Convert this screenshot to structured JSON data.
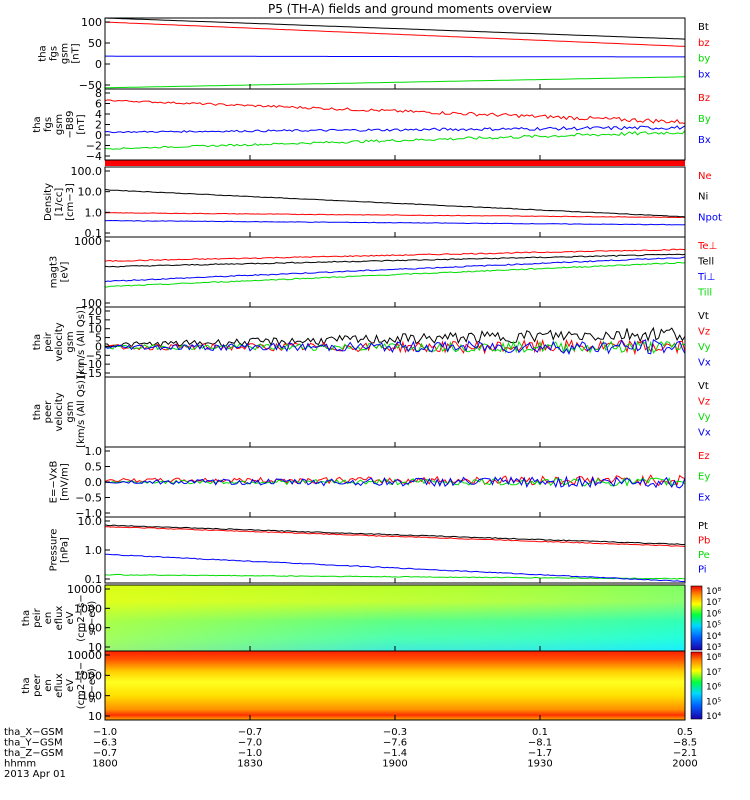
{
  "title": "P5 (TH-A) fields and ground moments overview",
  "colors": {
    "black": "#000000",
    "red": "#ff0000",
    "green": "#00dd00",
    "blue": "#0000ff"
  },
  "chart_data": [
    {
      "type": "line",
      "ylabel": [
        "tha",
        "fgs",
        "gsm",
        "[nT]"
      ],
      "yticks": [
        "100",
        "50",
        "0",
        "−50"
      ],
      "ylim": [
        -65,
        110
      ],
      "series": [
        {
          "name": "Bt",
          "color": "#000000",
          "start": 110,
          "end": 58,
          "noise": 0
        },
        {
          "name": "bz",
          "color": "#ff0000",
          "start": 100,
          "end": 40,
          "noise": 0
        },
        {
          "name": "by",
          "color": "#00dd00",
          "start": -62,
          "end": -35,
          "noise": 0
        },
        {
          "name": "bx",
          "color": "#0000ff",
          "start": 16,
          "end": 14,
          "noise": 0
        }
      ]
    },
    {
      "type": "line",
      "ylabel": [
        "tha",
        "fgs",
        "gsm",
        "−B89",
        "[nT]"
      ],
      "yticks": [
        "8",
        "6",
        "4",
        "2",
        "0",
        "−2",
        "−4"
      ],
      "ylim": [
        -5,
        9
      ],
      "series": [
        {
          "name": "Bz",
          "color": "#ff0000",
          "start": 6.8,
          "end": 2.5,
          "noise": 0.35
        },
        {
          "name": "By",
          "color": "#00dd00",
          "start": -2.8,
          "end": 0.5,
          "noise": 0.3
        },
        {
          "name": "Bx",
          "color": "#0000ff",
          "start": 0.5,
          "end": 1.4,
          "noise": 0.3
        }
      ]
    },
    {
      "type": "line",
      "ylabel": [
        "Density",
        "[1/cc]",
        "[cm−3]"
      ],
      "yticks": [
        "100.0",
        "10.0",
        "1.0",
        "0.1"
      ],
      "ylim": [
        0.07,
        200
      ],
      "log": true,
      "series": [
        {
          "name": "Ne",
          "color": "#ff0000",
          "start": 1.1,
          "end": 0.65,
          "noise": 0
        },
        {
          "name": "Ni",
          "color": "#000000",
          "start": 15,
          "end": 0.7,
          "noise": 0
        },
        {
          "name": "Npot",
          "color": "#0000ff",
          "start": 0.45,
          "end": 0.28,
          "noise": 0
        }
      ]
    },
    {
      "type": "line",
      "ylabel": [
        "magt3",
        "[eV]"
      ],
      "yticks": [
        "1000",
        "100"
      ],
      "ylim": [
        100,
        5000
      ],
      "log": true,
      "series": [
        {
          "name": "Te⊥",
          "color": "#ff0000",
          "start": 1300,
          "end": 2500,
          "noise": 0
        },
        {
          "name": "Tell",
          "color": "#000000",
          "start": 950,
          "end": 1900,
          "noise": 0
        },
        {
          "name": "Ti⊥",
          "color": "#0000ff",
          "start": 420,
          "end": 1600,
          "noise": 0
        },
        {
          "name": "Till",
          "color": "#00dd00",
          "start": 310,
          "end": 1200,
          "noise": 0
        }
      ]
    },
    {
      "type": "line",
      "ylabel": [
        "tha",
        "peir",
        "velocity",
        "gsm",
        "[km/s (All Qs)]"
      ],
      "yticks": [
        "20",
        "15",
        "10",
        "5",
        "0",
        "−5",
        "−10",
        "−15"
      ],
      "ylim": [
        -15,
        20
      ],
      "series": [
        {
          "name": "Vt",
          "color": "#000000",
          "start": 1,
          "end": 7,
          "noise": 3
        },
        {
          "name": "Vz",
          "color": "#ff0000",
          "start": 0,
          "end": 0,
          "noise": 3
        },
        {
          "name": "Vy",
          "color": "#00dd00",
          "start": 0,
          "end": 0,
          "noise": 2.5
        },
        {
          "name": "Vx",
          "color": "#0000ff",
          "start": 0,
          "end": 0,
          "noise": 3
        }
      ]
    },
    {
      "type": "line",
      "ylabel": [
        "tha",
        "peer",
        "velocity",
        "gsm",
        "[km/s (All Qs)]"
      ],
      "yticks": [],
      "ylim": [
        0,
        1
      ],
      "series": [
        {
          "name": "Vt",
          "color": "#000000"
        },
        {
          "name": "Vz",
          "color": "#ff0000"
        },
        {
          "name": "Vy",
          "color": "#00dd00"
        },
        {
          "name": "Vx",
          "color": "#0000ff"
        }
      ]
    },
    {
      "type": "line",
      "ylabel": [
        "E=−VxB",
        "[mV/m]"
      ],
      "yticks": [
        "1.0",
        "0.5",
        "0.0",
        "−0.5",
        "−1.0"
      ],
      "ylim": [
        -1,
        1
      ],
      "series": [
        {
          "name": "Ez",
          "color": "#ff0000",
          "start": 0.05,
          "end": 0.05,
          "noise": 0.12
        },
        {
          "name": "Ey",
          "color": "#00dd00",
          "start": 0,
          "end": 0,
          "noise": 0.1
        },
        {
          "name": "Ex",
          "color": "#0000ff",
          "start": 0,
          "end": 0,
          "noise": 0.14
        }
      ]
    },
    {
      "type": "line",
      "ylabel": [
        "Pressure",
        "[nPa]"
      ],
      "yticks": [
        "10.0",
        "1.0",
        "0.1"
      ],
      "ylim": [
        0.08,
        12
      ],
      "log": true,
      "series": [
        {
          "name": "Pt",
          "color": "#000000",
          "start": 6.5,
          "end": 1.5,
          "noise": 0
        },
        {
          "name": "Pb",
          "color": "#ff0000",
          "start": 5.8,
          "end": 1.3,
          "noise": 0
        },
        {
          "name": "Pe",
          "color": "#00dd00",
          "start": 0.15,
          "end": 0.11,
          "noise": 0
        },
        {
          "name": "Pi",
          "color": "#0000ff",
          "start": 0.7,
          "end": 0.09,
          "noise": 0
        }
      ]
    },
    {
      "type": "heatmap",
      "ylabel": [
        "tha",
        "peir",
        "en",
        "eflux",
        "eV",
        "(cm2−s−",
        "sr−eV)"
      ],
      "yticks": [
        "10000",
        "1000",
        "100",
        "10"
      ],
      "colorbar": [
        "10⁸",
        "10⁷",
        "10⁶",
        "10⁵",
        "10⁴",
        "10³"
      ]
    },
    {
      "type": "heatmap",
      "ylabel": [
        "tha",
        "peer",
        "en",
        "eflux",
        "eV",
        "(cm2−s−",
        "sr−eV)"
      ],
      "yticks": [
        "10000",
        "1000",
        "100",
        "10"
      ],
      "colorbar": [
        "10⁸",
        "10⁷",
        "10⁶",
        "10⁵",
        "10⁴"
      ]
    }
  ],
  "xaxis": {
    "labels": [
      "tha_X−GSM",
      "tha_Y−GSM",
      "tha_Z−GSM",
      "hhmm",
      "2013 Apr 01"
    ],
    "rows": [
      [
        "−1.0",
        "−0.7",
        "−0.3",
        "0.1",
        "0.5"
      ],
      [
        "−6.3",
        "−7.0",
        "−7.6",
        "−8.1",
        "−8.5"
      ],
      [
        "−0.7",
        "−1.0",
        "−1.4",
        "−1.7",
        "−2.1"
      ],
      [
        "1800",
        "1830",
        "1900",
        "1930",
        "2000"
      ]
    ]
  }
}
